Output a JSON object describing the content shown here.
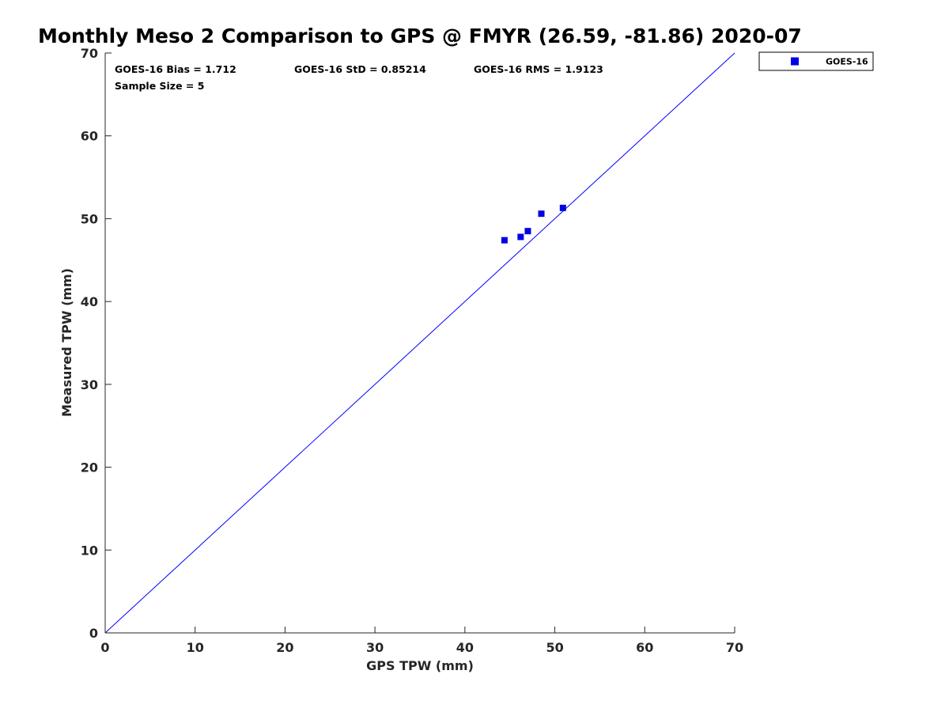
{
  "chart_data": {
    "type": "scatter",
    "title": "Monthly Meso 2 Comparison to GPS @ FMYR (26.59, -81.86) 2020-07",
    "xlabel": "GPS TPW (mm)",
    "ylabel": "Measured TPW (mm)",
    "xlim": [
      0,
      70
    ],
    "ylim": [
      0,
      70
    ],
    "xticks": [
      0,
      10,
      20,
      30,
      40,
      50,
      60,
      70
    ],
    "yticks": [
      0,
      10,
      20,
      30,
      40,
      50,
      60,
      70
    ],
    "grid": false,
    "legend_position": "outside-top-right",
    "series": [
      {
        "name": "GOES-16",
        "color": "#0000e6",
        "marker": "square",
        "points": [
          {
            "x": 44.4,
            "y": 47.4
          },
          {
            "x": 46.2,
            "y": 47.8
          },
          {
            "x": 47.0,
            "y": 48.5
          },
          {
            "x": 48.5,
            "y": 50.6
          },
          {
            "x": 50.9,
            "y": 51.3
          }
        ]
      }
    ],
    "reference_line": {
      "from": [
        0,
        0
      ],
      "to": [
        70,
        70
      ],
      "color": "#0000ff"
    },
    "annotations": [
      "GOES-16 Bias = 1.712",
      "GOES-16 StD = 0.85214",
      "GOES-16 RMS = 1.9123",
      "Sample Size = 5"
    ]
  }
}
